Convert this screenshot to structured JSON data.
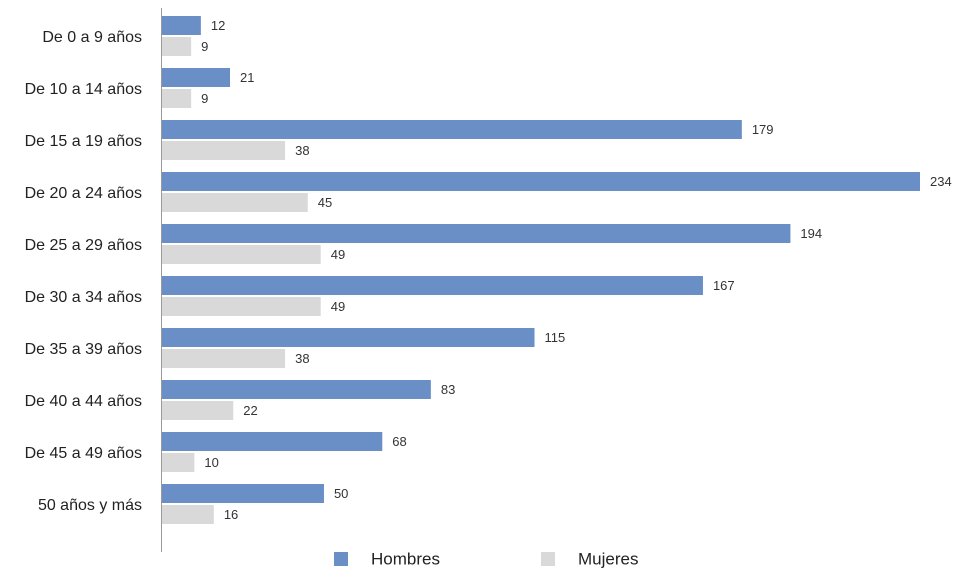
{
  "chart_data": {
    "type": "bar",
    "orientation": "horizontal",
    "title": "",
    "xlabel": "",
    "ylabel": "",
    "categories": [
      "De 0 a 9 años",
      "De 10 a 14 años",
      "De 15 a 19 años",
      "De 20 a 24 años",
      "De 25 a 29 años",
      "De 30 a 34 años",
      "De 35 a 39 años",
      "De 40 a 44 años",
      "De 45 a 49 años",
      "50 años y más"
    ],
    "series": [
      {
        "name": "Hombres",
        "color": "#6a8fc7",
        "values": [
          12,
          21,
          179,
          234,
          194,
          167,
          115,
          83,
          68,
          50
        ]
      },
      {
        "name": "Mujeres",
        "color": "#d9d9d9",
        "values": [
          9,
          9,
          38,
          45,
          49,
          49,
          38,
          22,
          10,
          16
        ]
      }
    ],
    "xlim": [
      0,
      234
    ],
    "grid": false,
    "legend_position": "bottom",
    "data_labels": true
  },
  "colors": {
    "axis": "#9a9a9a",
    "label_text": "#222222",
    "value_text": "#333333"
  }
}
